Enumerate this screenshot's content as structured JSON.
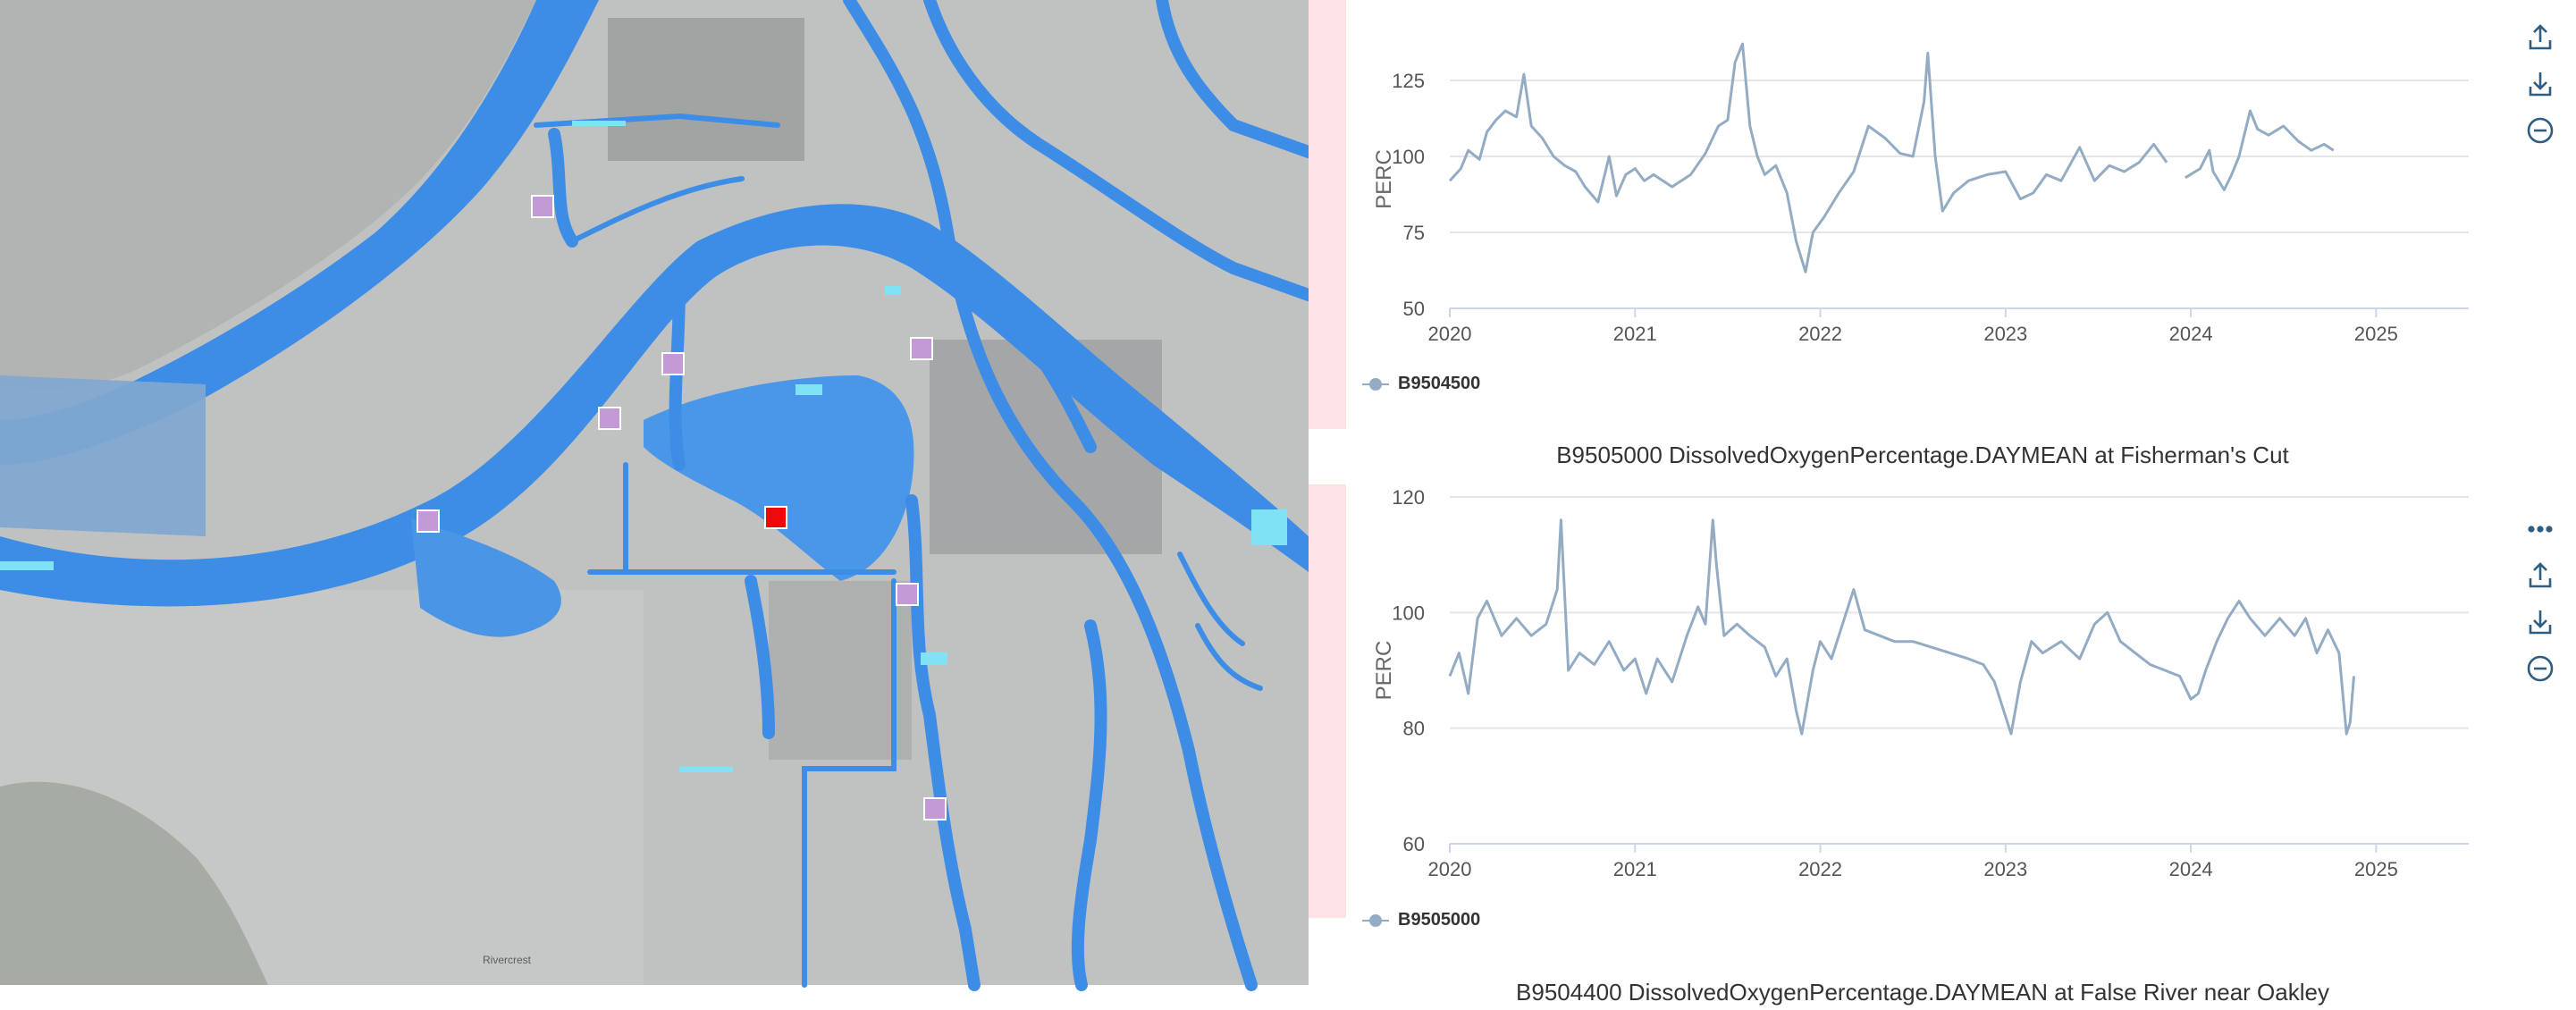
{
  "map": {
    "stations": [
      {
        "id": "st1",
        "selected": false
      },
      {
        "id": "st2",
        "selected": false
      },
      {
        "id": "st3",
        "selected": false
      },
      {
        "id": "st4",
        "selected": false
      },
      {
        "id": "st5",
        "selected": false
      },
      {
        "id": "st6",
        "selected": true
      },
      {
        "id": "st7",
        "selected": false
      },
      {
        "id": "st8",
        "selected": false
      }
    ],
    "colors": {
      "water": "#3d8de6",
      "water_light": "#7ab8f0",
      "cyan": "#7fe3f5",
      "land": "#bfc1c1",
      "station": "#c49ad6",
      "station_selected": "#ee0a0a"
    },
    "place_label": "Rivercrest"
  },
  "charts": [
    {
      "title": "",
      "ylabel": "PERC",
      "legend": "B9504500",
      "toolbar": {
        "icons": [
          "upload-icon",
          "download-icon",
          "minus-circle-icon"
        ]
      },
      "chart_data": {
        "type": "line",
        "series": [
          {
            "name": "B9504500",
            "color": "#93acc4"
          }
        ],
        "x_range": [
          2020.0,
          2025.5
        ],
        "ylim": [
          50,
          135
        ],
        "y_ticks": [
          50,
          75,
          100,
          125
        ],
        "x_ticks": [
          2020,
          2021,
          2022,
          2023,
          2024,
          2025
        ],
        "grid": true,
        "legend_position": "bottom-left",
        "points": [
          [
            2020.0,
            92
          ],
          [
            2020.06,
            96
          ],
          [
            2020.1,
            102
          ],
          [
            2020.16,
            99
          ],
          [
            2020.2,
            108
          ],
          [
            2020.25,
            112
          ],
          [
            2020.3,
            115
          ],
          [
            2020.36,
            113
          ],
          [
            2020.4,
            127
          ],
          [
            2020.44,
            110
          ],
          [
            2020.5,
            106
          ],
          [
            2020.56,
            100
          ],
          [
            2020.62,
            97
          ],
          [
            2020.68,
            95
          ],
          [
            2020.73,
            90
          ],
          [
            2020.8,
            85
          ],
          [
            2020.86,
            100
          ],
          [
            2020.9,
            87
          ],
          [
            2020.95,
            94
          ],
          [
            2021.0,
            96
          ],
          [
            2021.05,
            92
          ],
          [
            2021.1,
            94
          ],
          [
            2021.2,
            90
          ],
          [
            2021.3,
            94
          ],
          [
            2021.38,
            101
          ],
          [
            2021.45,
            110
          ],
          [
            2021.5,
            112
          ],
          [
            2021.54,
            131
          ],
          [
            2021.58,
            137
          ],
          [
            2021.62,
            110
          ],
          [
            2021.66,
            100
          ],
          [
            2021.7,
            94
          ],
          [
            2021.76,
            97
          ],
          [
            2021.82,
            88
          ],
          [
            2021.87,
            72
          ],
          [
            2021.92,
            62
          ],
          [
            2021.96,
            75
          ],
          [
            2022.02,
            80
          ],
          [
            2022.1,
            88
          ],
          [
            2022.18,
            95
          ],
          [
            2022.26,
            110
          ],
          [
            2022.35,
            106
          ],
          [
            2022.43,
            101
          ],
          [
            2022.5,
            100
          ],
          [
            2022.56,
            118
          ],
          [
            2022.58,
            134
          ],
          [
            2022.62,
            100
          ],
          [
            2022.66,
            82
          ],
          [
            2022.72,
            88
          ],
          [
            2022.8,
            92
          ],
          [
            2022.9,
            94
          ],
          [
            2023.0,
            95
          ],
          [
            2023.08,
            86
          ],
          [
            2023.15,
            88
          ],
          [
            2023.22,
            94
          ],
          [
            2023.3,
            92
          ],
          [
            2023.4,
            103
          ],
          [
            2023.48,
            92
          ],
          [
            2023.56,
            97
          ],
          [
            2023.64,
            95
          ],
          [
            2023.72,
            98
          ],
          [
            2023.8,
            104
          ],
          [
            2023.87,
            98
          ],
          [
            2023.9,
            null
          ],
          [
            2023.97,
            93
          ],
          [
            2024.05,
            96
          ],
          [
            2024.1,
            102
          ],
          [
            2024.12,
            95
          ],
          [
            2024.18,
            89
          ],
          [
            2024.22,
            94
          ],
          [
            2024.26,
            100
          ],
          [
            2024.32,
            115
          ],
          [
            2024.36,
            109
          ],
          [
            2024.42,
            107
          ],
          [
            2024.5,
            110
          ],
          [
            2024.58,
            105
          ],
          [
            2024.65,
            102
          ],
          [
            2024.72,
            104
          ],
          [
            2024.77,
            102
          ]
        ]
      }
    },
    {
      "title": "B9505000 DissolvedOxygenPercentage.DAYMEAN at Fisherman's Cut",
      "ylabel": "PERC",
      "legend": "B9505000",
      "toolbar": {
        "icons": [
          "more-icon",
          "upload-icon",
          "download-icon",
          "minus-circle-icon"
        ]
      },
      "chart_data": {
        "type": "line",
        "series": [
          {
            "name": "B9505000",
            "color": "#93acc4"
          }
        ],
        "x_range": [
          2020.0,
          2025.5
        ],
        "ylim": [
          60,
          120
        ],
        "y_ticks": [
          60,
          80,
          100,
          120
        ],
        "x_ticks": [
          2020,
          2021,
          2022,
          2023,
          2024,
          2025
        ],
        "grid": true,
        "legend_position": "bottom-left",
        "points": [
          [
            2020.0,
            89
          ],
          [
            2020.05,
            93
          ],
          [
            2020.1,
            86
          ],
          [
            2020.15,
            99
          ],
          [
            2020.2,
            102
          ],
          [
            2020.28,
            96
          ],
          [
            2020.36,
            99
          ],
          [
            2020.44,
            96
          ],
          [
            2020.52,
            98
          ],
          [
            2020.58,
            104
          ],
          [
            2020.6,
            116
          ],
          [
            2020.64,
            90
          ],
          [
            2020.7,
            93
          ],
          [
            2020.78,
            91
          ],
          [
            2020.86,
            95
          ],
          [
            2020.94,
            90
          ],
          [
            2021.0,
            92
          ],
          [
            2021.06,
            86
          ],
          [
            2021.12,
            92
          ],
          [
            2021.2,
            88
          ],
          [
            2021.28,
            96
          ],
          [
            2021.34,
            101
          ],
          [
            2021.38,
            98
          ],
          [
            2021.42,
            116
          ],
          [
            2021.44,
            108
          ],
          [
            2021.48,
            96
          ],
          [
            2021.55,
            98
          ],
          [
            2021.62,
            96
          ],
          [
            2021.7,
            94
          ],
          [
            2021.76,
            89
          ],
          [
            2021.82,
            92
          ],
          [
            2021.87,
            83
          ],
          [
            2021.9,
            79
          ],
          [
            2021.96,
            90
          ],
          [
            2022.0,
            95
          ],
          [
            2022.06,
            92
          ],
          [
            2022.12,
            98
          ],
          [
            2022.18,
            104
          ],
          [
            2022.24,
            97
          ],
          [
            2022.32,
            96
          ],
          [
            2022.4,
            95
          ],
          [
            2022.5,
            95
          ],
          [
            2022.6,
            94
          ],
          [
            2022.7,
            93
          ],
          [
            2022.8,
            92
          ],
          [
            2022.88,
            91
          ],
          [
            2022.94,
            88
          ],
          [
            2023.0,
            82
          ],
          [
            2023.03,
            79
          ],
          [
            2023.08,
            88
          ],
          [
            2023.14,
            95
          ],
          [
            2023.2,
            93
          ],
          [
            2023.3,
            95
          ],
          [
            2023.4,
            92
          ],
          [
            2023.48,
            98
          ],
          [
            2023.55,
            100
          ],
          [
            2023.62,
            95
          ],
          [
            2023.7,
            93
          ],
          [
            2023.78,
            91
          ],
          [
            2023.86,
            90
          ],
          [
            2023.94,
            89
          ],
          [
            2024.0,
            85
          ],
          [
            2024.04,
            86
          ],
          [
            2024.08,
            90
          ],
          [
            2024.14,
            95
          ],
          [
            2024.2,
            99
          ],
          [
            2024.26,
            102
          ],
          [
            2024.32,
            99
          ],
          [
            2024.4,
            96
          ],
          [
            2024.48,
            99
          ],
          [
            2024.56,
            96
          ],
          [
            2024.62,
            99
          ],
          [
            2024.68,
            93
          ],
          [
            2024.74,
            97
          ],
          [
            2024.8,
            93
          ],
          [
            2024.84,
            79
          ],
          [
            2024.86,
            81
          ],
          [
            2024.88,
            89
          ]
        ]
      }
    }
  ],
  "next_chart_title": "B9504400 DissolvedOxygenPercentage.DAYMEAN at False River near Oakley"
}
